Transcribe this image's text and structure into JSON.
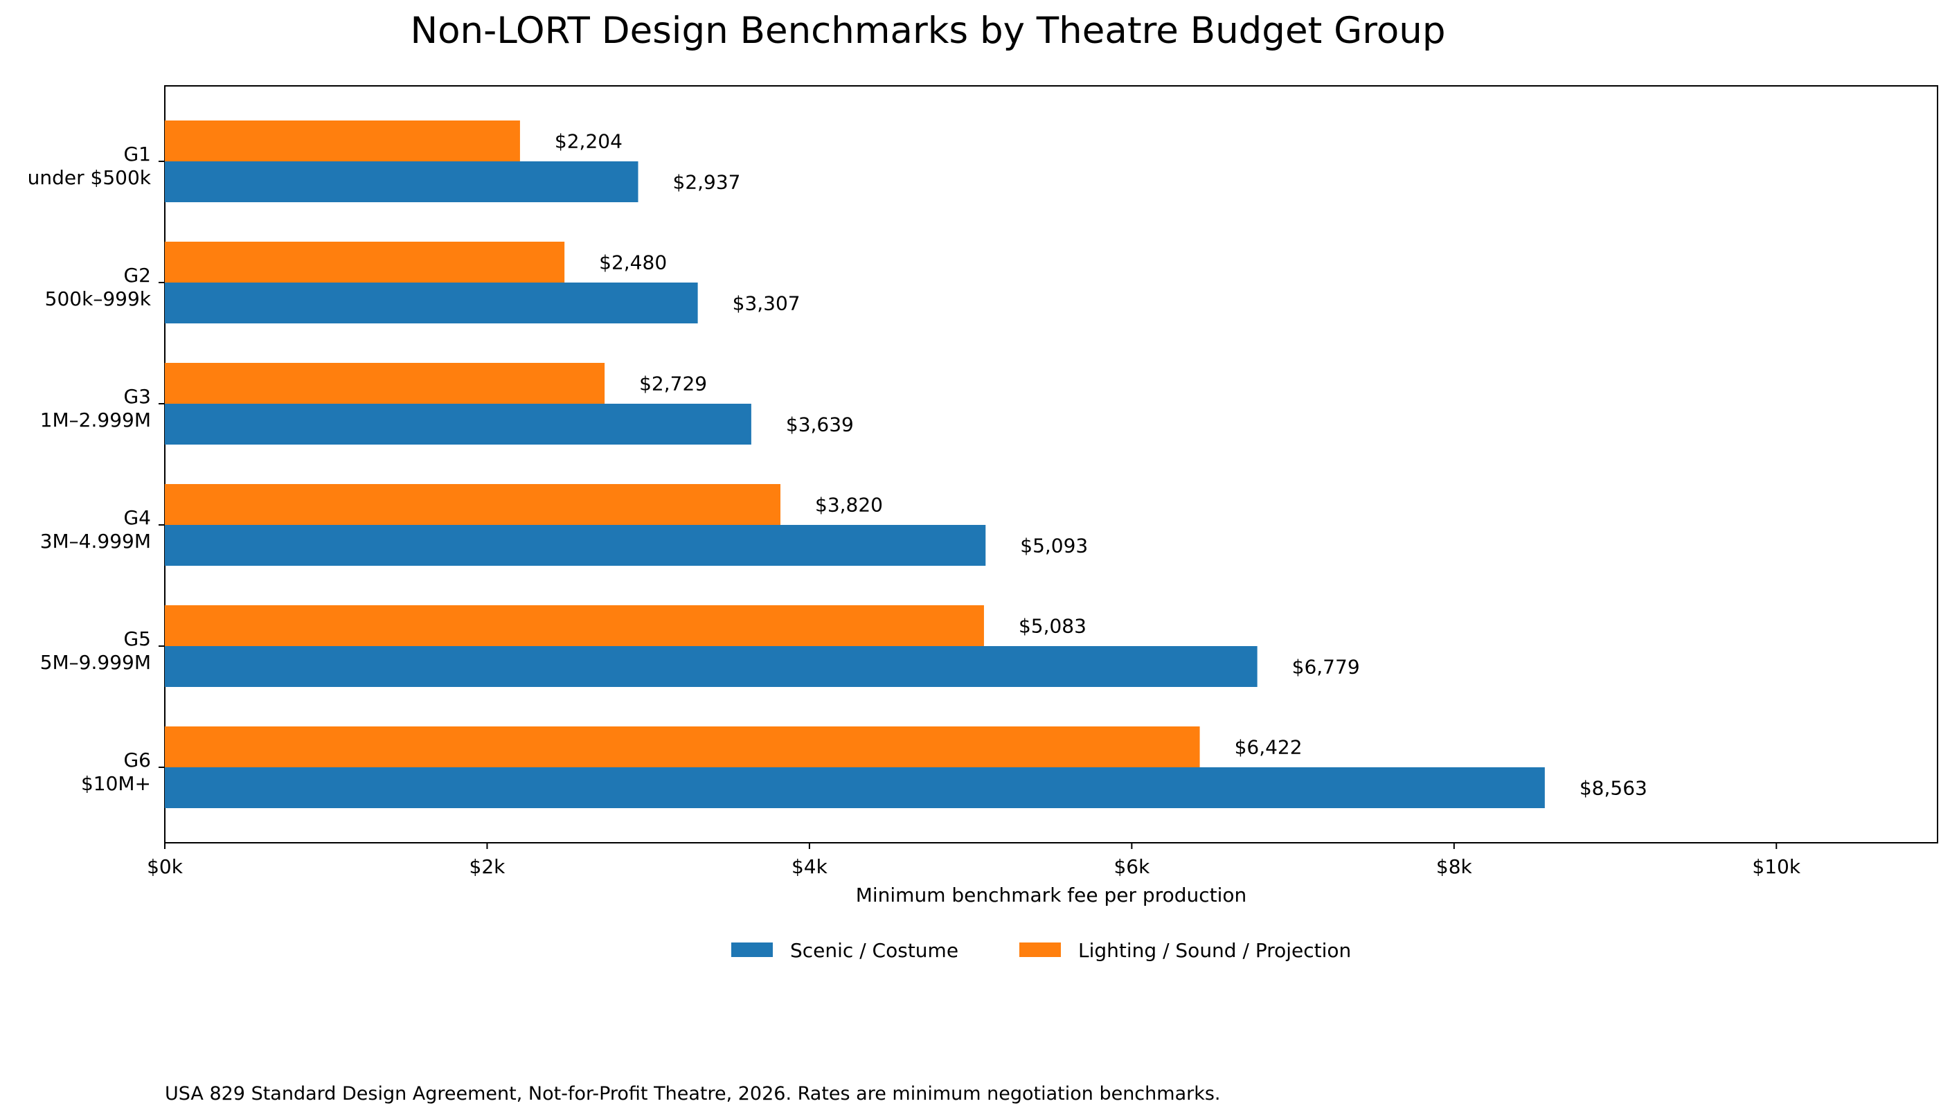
{
  "chart_data": {
    "type": "bar",
    "orientation": "horizontal",
    "title": "Non-LORT Design Benchmarks by Theatre Budget Group",
    "xlabel": "Minimum benchmark fee per production",
    "ylabel": "",
    "xlim": [
      0,
      11000
    ],
    "x_ticks": [
      {
        "value": 0,
        "label": "$0k"
      },
      {
        "value": 2000,
        "label": "$2k"
      },
      {
        "value": 4000,
        "label": "$4k"
      },
      {
        "value": 6000,
        "label": "$6k"
      },
      {
        "value": 8000,
        "label": "$8k"
      },
      {
        "value": 10000,
        "label": "$10k"
      }
    ],
    "categories": [
      {
        "group": "G1",
        "range": "under $500k"
      },
      {
        "group": "G2",
        "range": "500k–999k"
      },
      {
        "group": "G3",
        "range": "1M–2.999M"
      },
      {
        "group": "G4",
        "range": "3M–4.999M"
      },
      {
        "group": "G5",
        "range": "5M–9.999M"
      },
      {
        "group": "G6",
        "range": "$10M+"
      }
    ],
    "series": [
      {
        "name": "Scenic / Costume",
        "color": "#1f77b4",
        "values": [
          2937,
          3307,
          3639,
          5093,
          6779,
          8563
        ],
        "labels": [
          "$2,937",
          "$3,307",
          "$3,639",
          "$5,093",
          "$6,779",
          "$8,563"
        ]
      },
      {
        "name": "Lighting / Sound / Projection",
        "color": "#ff7f0e",
        "values": [
          2204,
          2480,
          2729,
          3820,
          5083,
          6422
        ],
        "labels": [
          "$2,204",
          "$2,480",
          "$2,729",
          "$3,820",
          "$5,083",
          "$6,422"
        ]
      }
    ],
    "grid": false,
    "legend_position": "bottom-center"
  },
  "footnote": "USA 829 Standard Design Agreement, Not-for-Profit Theatre, 2026. Rates are minimum negotiation benchmarks."
}
